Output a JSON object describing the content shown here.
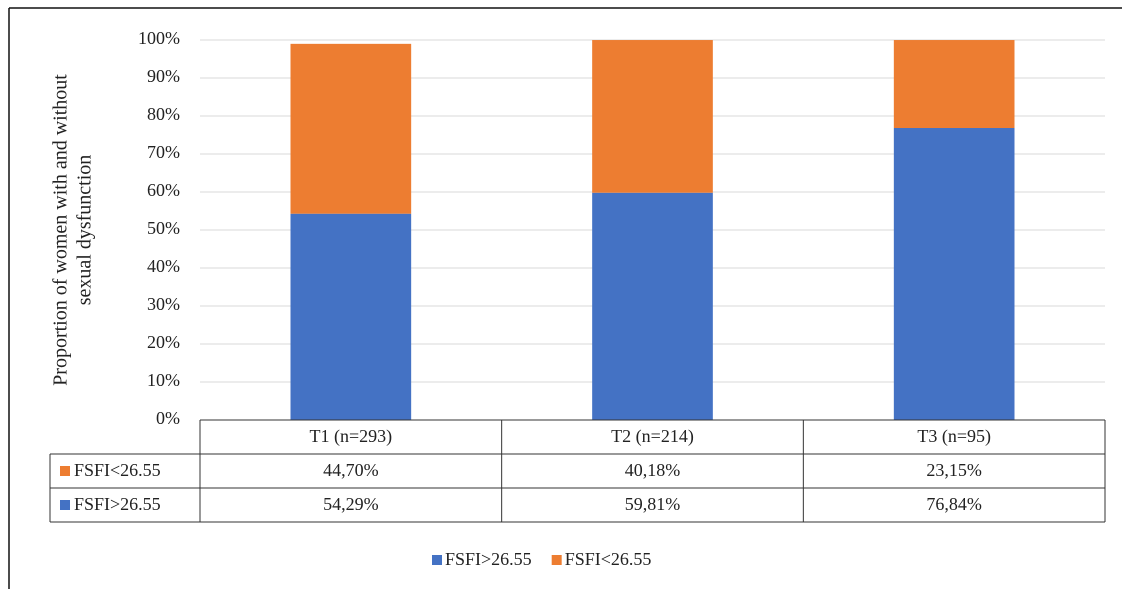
{
  "chart_data": {
    "type": "stacked_bar",
    "ylabel": [
      "Proportion of women with and without",
      "sexual dysfunction"
    ],
    "categories": [
      "T1 (n=293)",
      "T2 (n=214)",
      "T3 (n=95)"
    ],
    "series": [
      {
        "name": "FSFI>26.55",
        "color": "#4472c4",
        "values": [
          54.29,
          59.81,
          76.84
        ],
        "value_labels": [
          "54,29%",
          "59,81%",
          "76,84%"
        ]
      },
      {
        "name": "FSFI<26.55",
        "color": "#ed7d31",
        "values": [
          44.7,
          40.18,
          23.15
        ],
        "value_labels": [
          "44,70%",
          "40,18%",
          "23,15%"
        ]
      }
    ],
    "ylim": [
      0,
      100
    ],
    "yticks": [
      {
        "value": 0,
        "label": "0%"
      },
      {
        "value": 10,
        "label": "10%"
      },
      {
        "value": 20,
        "label": "20%"
      },
      {
        "value": 30,
        "label": "30%"
      },
      {
        "value": 40,
        "label": "40%"
      },
      {
        "value": 50,
        "label": "50%"
      },
      {
        "value": 60,
        "label": "60%"
      },
      {
        "value": 70,
        "label": "70%"
      },
      {
        "value": 80,
        "label": "80%"
      },
      {
        "value": 90,
        "label": "90%"
      },
      {
        "value": 100,
        "label": "100%"
      }
    ],
    "grid": true
  }
}
